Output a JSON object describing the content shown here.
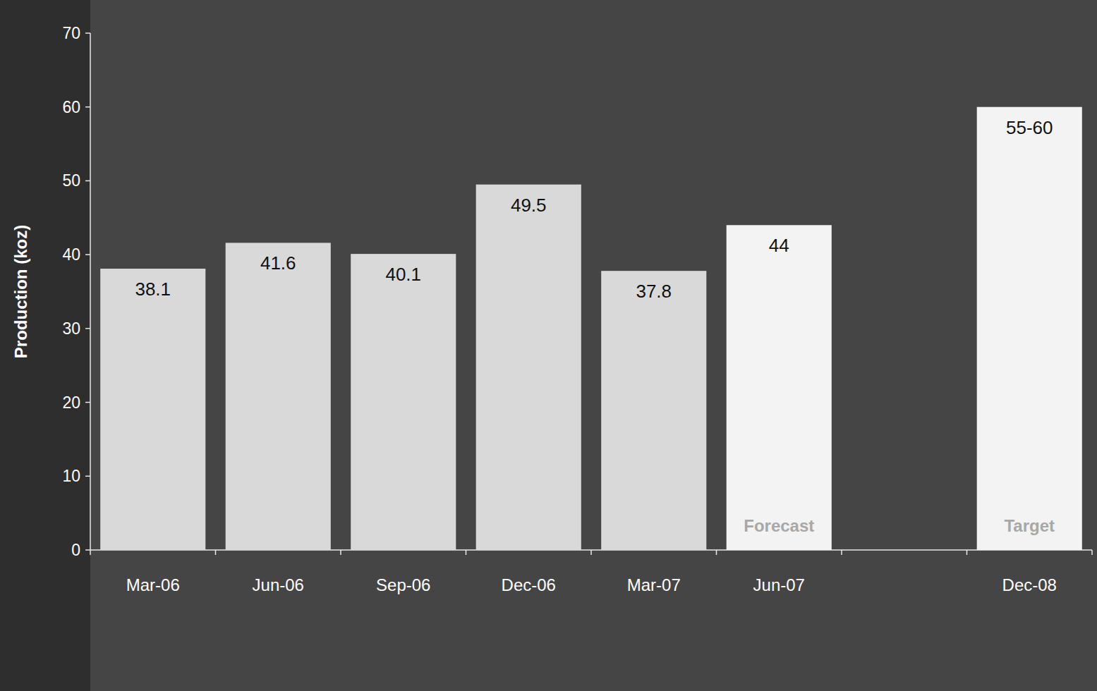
{
  "chart_data": {
    "type": "bar",
    "y_label": "Production (koz)",
    "categories": [
      "Mar-06",
      "Jun-06",
      "Sep-06",
      "Dec-06",
      "Mar-07",
      "Jun-07",
      null,
      "Dec-08"
    ],
    "values": [
      38.1,
      41.6,
      40.1,
      49.5,
      37.8,
      44,
      null,
      60
    ],
    "value_labels": [
      "38.1",
      "41.6",
      "40.1",
      "49.5",
      "37.8",
      "44",
      null,
      "55-60"
    ],
    "annotations": [
      null,
      null,
      null,
      null,
      null,
      "Forecast",
      null,
      "Target"
    ],
    "colors": [
      "#d9d9d9",
      "#d9d9d9",
      "#d9d9d9",
      "#d9d9d9",
      "#d9d9d9",
      "#f3f3f3",
      "#f3f3f3",
      "#f3f3f3"
    ],
    "ylim": [
      0,
      70
    ],
    "yticks": [
      0,
      10,
      20,
      30,
      40,
      50,
      60,
      70
    ],
    "grid": false,
    "data_labels": true
  }
}
